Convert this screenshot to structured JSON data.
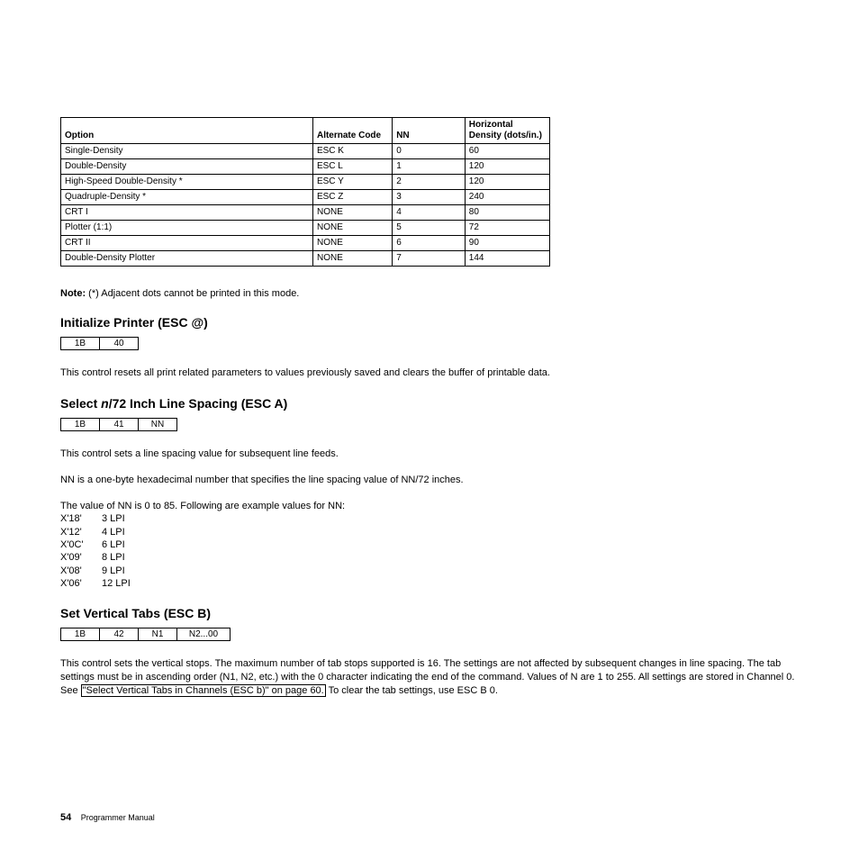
{
  "densityTable": {
    "headers": {
      "option": "Option",
      "alt": "Alternate Code",
      "nn": "NN",
      "density": "Horizontal Density (dots/in.)"
    },
    "rows": [
      {
        "option": "Single-Density",
        "alt": "ESC K",
        "nn": "0",
        "density": "60"
      },
      {
        "option": "Double-Density",
        "alt": "ESC L",
        "nn": "1",
        "density": "120"
      },
      {
        "option": "High-Speed Double-Density *",
        "alt": "ESC Y",
        "nn": "2",
        "density": "120"
      },
      {
        "option": "Quadruple-Density *",
        "alt": "ESC Z",
        "nn": "3",
        "density": "240"
      },
      {
        "option": "CRT I",
        "alt": "NONE",
        "nn": "4",
        "density": "80"
      },
      {
        "option": "Plotter (1:1)",
        "alt": "NONE",
        "nn": "5",
        "density": "72"
      },
      {
        "option": "CRT II",
        "alt": "NONE",
        "nn": "6",
        "density": "90"
      },
      {
        "option": "Double-Density Plotter",
        "alt": "NONE",
        "nn": "7",
        "density": "144"
      }
    ]
  },
  "note": {
    "label": "Note:",
    "text": "(*) Adjacent dots cannot be printed in this mode."
  },
  "section1": {
    "title": "Initialize Printer (ESC @)",
    "hex": [
      "1B",
      "40"
    ],
    "body": "This control resets all print related parameters to values previously saved and clears the buffer of printable data."
  },
  "section2": {
    "title_pre": "Select ",
    "title_italic": "n",
    "title_post": "/72 Inch Line Spacing (ESC A)",
    "hex": [
      "1B",
      "41",
      "NN"
    ],
    "body1": "This control sets a line spacing value for subsequent line feeds.",
    "body2": "NN is a one-byte hexadecimal number that specifies the line spacing value of NN/72 inches.",
    "body3": "The value of NN is 0 to 85. Following are example values for NN:",
    "lpi": [
      {
        "hex": "X'18'",
        "val": "3 LPI"
      },
      {
        "hex": "X'12'",
        "val": "4 LPI"
      },
      {
        "hex": "X'0C'",
        "val": "6 LPI"
      },
      {
        "hex": "X'09'",
        "val": "8 LPI"
      },
      {
        "hex": "X'08'",
        "val": "9 LPI"
      },
      {
        "hex": "X'06'",
        "val": "12 LPI"
      }
    ]
  },
  "section3": {
    "title": "Set Vertical Tabs (ESC B)",
    "hex": [
      "1B",
      "42",
      "N1",
      "N2...00"
    ],
    "body_pre": "This control sets the vertical stops. The maximum number of tab stops supported is 16. The settings are not affected by subsequent changes in line spacing. The tab settings must be in ascending order (N1, N2, etc.) with the 0 character indicating the end of the command. Values of N are 1 to 255. All settings are stored in Channel 0. See ",
    "link": "\"Select Vertical Tabs in Channels (ESC b)\" on page 60.",
    "body_post": " To clear the tab settings, use ESC B 0."
  },
  "footer": {
    "pagenum": "54",
    "label": "Programmer Manual"
  }
}
